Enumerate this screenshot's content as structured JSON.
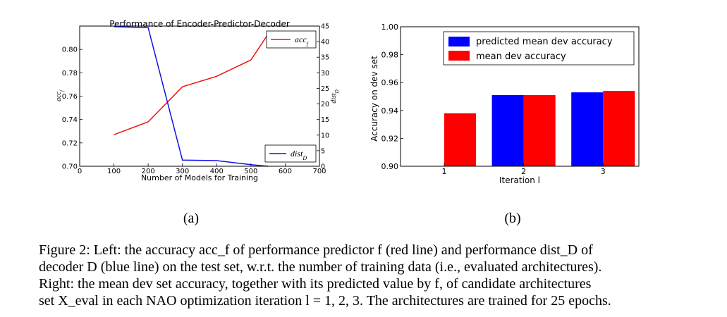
{
  "chart_data": [
    {
      "type": "line",
      "title": "Performance of Encoder-Predictor-Decoder",
      "xlabel": "Number of Models for Training",
      "ylabel": "acc_f",
      "y2label": "dist_D",
      "xlim": [
        0,
        700
      ],
      "ylim": [
        0.7,
        0.82
      ],
      "y2lim": [
        0,
        45
      ],
      "x_ticks": [
        "0",
        "100",
        "200",
        "300",
        "400",
        "500",
        "600",
        "700"
      ],
      "y_ticks": [
        "0.70",
        "0.72",
        "0.74",
        "0.76",
        "0.78",
        "0.80"
      ],
      "y2_ticks": [
        "0",
        "5",
        "10",
        "15",
        "20",
        "25",
        "30",
        "35",
        "40",
        "45"
      ],
      "grid": false,
      "series": [
        {
          "name": "acc_f",
          "axis": "left",
          "color": "#ee1111",
          "x": [
            100,
            200,
            300,
            400,
            500,
            550
          ],
          "y": [
            0.727,
            0.738,
            0.768,
            0.777,
            0.791,
            0.813
          ]
        },
        {
          "name": "dist_D",
          "axis": "right",
          "color": "#1111ee",
          "x": [
            100,
            200,
            300,
            400,
            500,
            550
          ],
          "y": [
            44.8,
            44.5,
            2.0,
            1.8,
            0.5,
            0.0
          ]
        }
      ],
      "legends": [
        {
          "label": "acc_f",
          "placement": "top-right"
        },
        {
          "label": "dist_D",
          "placement": "bottom-right"
        }
      ]
    },
    {
      "type": "bar",
      "xlabel": "Iteration l",
      "ylabel": "Accuracy on dev set",
      "ylim": [
        0.9,
        1.0
      ],
      "y_ticks": [
        "0.90",
        "0.92",
        "0.94",
        "0.96",
        "0.98",
        "1.00"
      ],
      "categories": [
        "1",
        "2",
        "3"
      ],
      "grid": false,
      "legend_placement": "top-right",
      "series": [
        {
          "name": "predicted mean dev accuracy",
          "color": "#0000ff",
          "values": [
            null,
            0.951,
            0.953
          ]
        },
        {
          "name": "mean dev accuracy",
          "color": "#ff0000",
          "values": [
            0.938,
            0.951,
            0.954
          ]
        }
      ]
    }
  ],
  "subfigures": {
    "left": "(a)",
    "right": "(b)"
  },
  "caption": {
    "line1": "Figure 2: Left: the accuracy acc_f of performance predictor f (red line) and performance dist_D of",
    "line2": "decoder D (blue line) on the test set, w.r.t. the number of training data (i.e., evaluated architectures).",
    "line3": "Right: the mean dev set accuracy, together with its predicted value by f, of candidate architectures",
    "line4": "set X_eval in each NAO optimization iteration l = 1, 2, 3. The architectures are trained for 25 epochs."
  }
}
